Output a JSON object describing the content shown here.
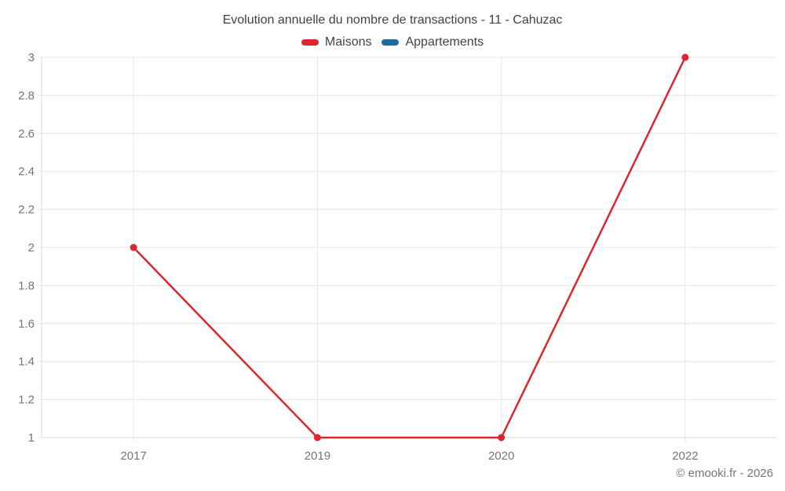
{
  "chart_data": {
    "type": "line",
    "title": "Evolution annuelle du nombre de transactions - 11 - Cahuzac",
    "categories": [
      "2017",
      "2019",
      "2020",
      "2022"
    ],
    "series": [
      {
        "name": "Maisons",
        "color": "#dc2730",
        "values": [
          2,
          1,
          1,
          3
        ]
      },
      {
        "name": "Appartements",
        "color": "#1a6c9c",
        "values": [
          null,
          null,
          null,
          null
        ]
      }
    ],
    "ylim": [
      1,
      3
    ],
    "yticks": [
      1,
      1.2,
      1.4,
      1.6,
      1.8,
      2,
      2.2,
      2.4,
      2.6,
      2.8,
      3
    ],
    "xlabel": "",
    "ylabel": "",
    "grid": true,
    "legend_position": "top",
    "style": {
      "title_color": "#424242",
      "tick_color": "#757575",
      "gridline_color": "#e7e7e7",
      "axis_color": "#d9d9d9"
    }
  },
  "footer": {
    "copyright": "© emooki.fr - 2026"
  }
}
